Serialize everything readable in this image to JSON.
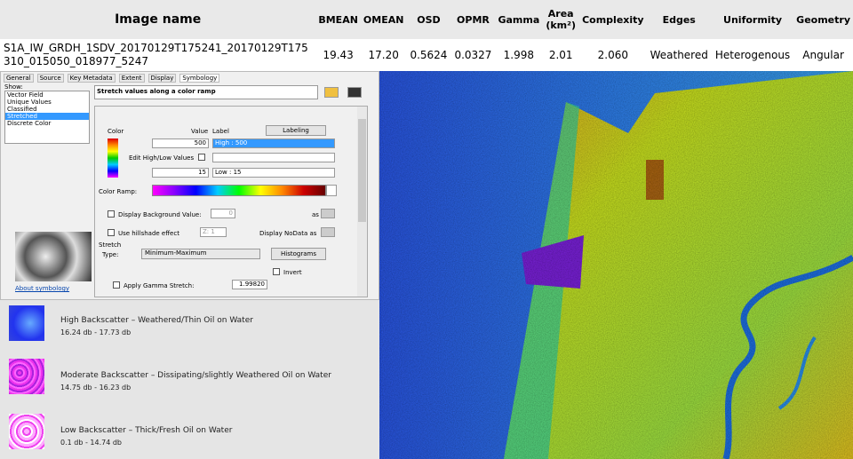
{
  "table": {
    "headers": [
      "Image name",
      "BMEAN",
      "OMEAN",
      "OSD",
      "OPMR",
      "Gamma",
      "Area (km²)",
      "Complexity",
      "Edges",
      "Uniformity",
      "Geometry"
    ],
    "rows": [
      [
        "S1A_IW_GRDH_1SDV_20170129T175241_20170129T175310_015050_018977_5247",
        "19.43",
        "17.20",
        "0.5624",
        "0.0327",
        "1.998",
        "2.01",
        "2.060",
        "Weathered",
        "Heterogenous",
        "Angular"
      ]
    ]
  },
  "dialog": {
    "tabs": [
      "General",
      "Source",
      "Key Metadata",
      "Extent",
      "Display",
      "Symbology"
    ],
    "show_label": "Show:",
    "show_items": [
      "Vector Field",
      "Unique Values",
      "Classified",
      "Stretched",
      "Discrete Color"
    ],
    "header": "Stretch values along a color ramp",
    "about": "About symbology",
    "color_label": "Color",
    "value_label": "Value",
    "label_label": "Label",
    "labeling_button": "Labeling",
    "high_value": "500",
    "high_label": "High : 500",
    "edit_high_low": "Edit High/Low Values",
    "low_value": "15",
    "low_label": "Low : 15",
    "color_ramp": "Color Ramp:",
    "display_background": "Display Background Value:",
    "background_value": "0",
    "as": "as",
    "hillshade": "Use hillshade effect",
    "z_label": "Z: 1",
    "nodata": "Display NoData as",
    "stretch": "Stretch",
    "type_label": "Type:",
    "type_value": "Minimum-Maximum",
    "histograms_button": "Histograms",
    "invert": "Invert",
    "gamma": "Apply Gamma Stretch:",
    "gamma_value": "1.99820"
  },
  "legend": [
    {
      "title": "High Backscatter – Weathered/Thin Oil on Water",
      "range": "16.24 db - 17.73 db"
    },
    {
      "title": "Moderate Backscatter – Dissipating/slightly Weathered  Oil on Water",
      "range": "14.75 db - 16.23 db"
    },
    {
      "title": "Low Backscatter – Thick/Fresh Oil on Water",
      "range": "0.1 db - 14.74 db"
    }
  ]
}
